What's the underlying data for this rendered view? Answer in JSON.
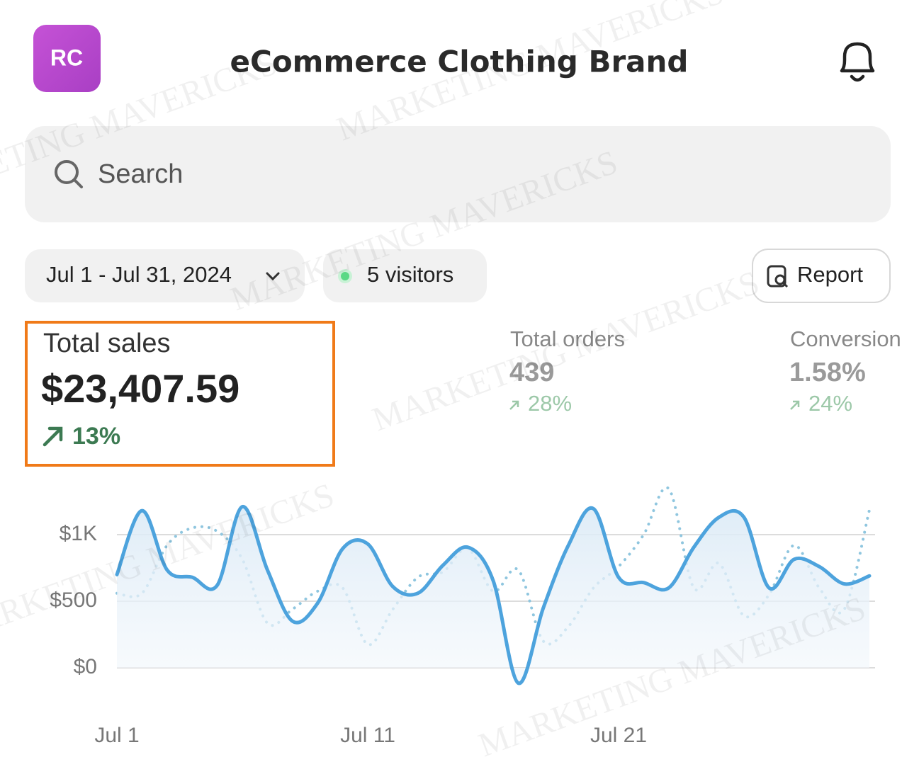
{
  "header": {
    "avatar": "RC",
    "title": "eCommerce Clothing Brand"
  },
  "search": {
    "placeholder": "Search"
  },
  "filters": {
    "date_range": "Jul 1 - Jul 31, 2024",
    "visitors": "5 visitors",
    "report": "Report"
  },
  "metrics": [
    {
      "label": "Total sales",
      "value": "$23,407.59",
      "change": "13%"
    },
    {
      "label": "Total orders",
      "value": "439",
      "change": "28%"
    },
    {
      "label": "Conversion",
      "value": "1.58%",
      "change": "24%"
    }
  ],
  "watermark": "MARKETING MAVERICKS",
  "chart_data": {
    "type": "line",
    "categories": [
      "Jul 1",
      null,
      null,
      null,
      null,
      null,
      null,
      null,
      null,
      null,
      "Jul 11",
      null,
      null,
      null,
      null,
      null,
      null,
      null,
      null,
      null,
      "Jul 21",
      null,
      null,
      null,
      null,
      null,
      null,
      null,
      null,
      null,
      null
    ],
    "series": [
      {
        "color": "#4da3dd",
        "style": "solid",
        "fill": true,
        "values": [
          700,
          1180,
          735,
          680,
          620,
          1210,
          735,
          350,
          485,
          895,
          930,
          610,
          560,
          770,
          905,
          655,
          -115,
          450,
          920,
          1195,
          680,
          640,
          600,
          905,
          1130,
          1130,
          600,
          815,
          760,
          630,
          690
        ]
      },
      {
        "color": "#8fc6df",
        "style": "dotted",
        "fill": false,
        "values": [
          560,
          560,
          920,
          1050,
          1025,
          815,
          335,
          440,
          575,
          600,
          175,
          440,
          680,
          720,
          895,
          575,
          735,
          200,
          310,
          600,
          760,
          1000,
          1345,
          600,
          785,
          390,
          550,
          920,
          600,
          440,
          1185
        ]
      }
    ],
    "ylim": [
      -150,
      1400
    ],
    "yticks": [
      {
        "value": 0,
        "label": "$0"
      },
      {
        "value": 500,
        "label": "$500"
      },
      {
        "value": 1000,
        "label": "$1K"
      }
    ],
    "grid": true
  }
}
